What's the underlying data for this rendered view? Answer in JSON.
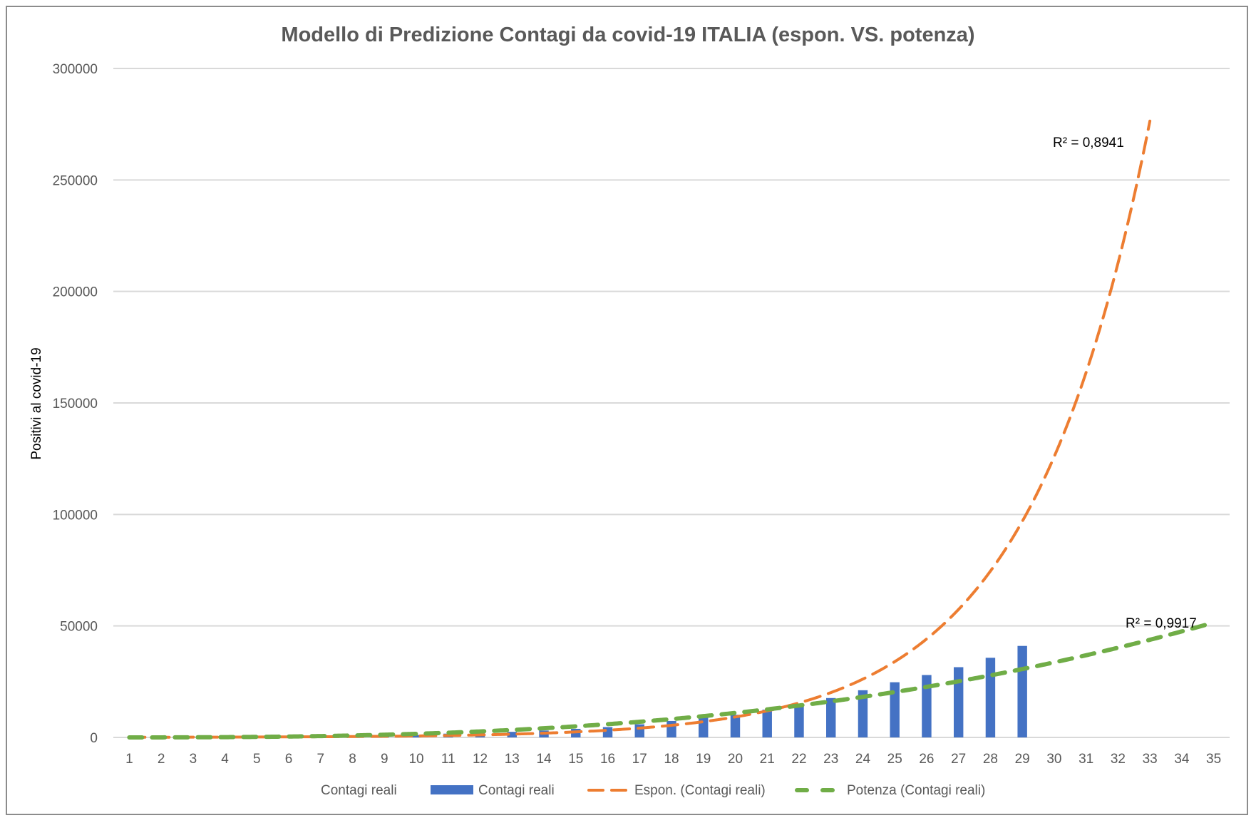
{
  "chart_data": {
    "type": "bar",
    "title": "Modello di Predizione Contagi da covid-19 ITALIA (espon. VS. potenza)",
    "xlabel": "",
    "ylabel": "Positivi al covid-19",
    "ylim": [
      0,
      300000
    ],
    "yticks": [
      0,
      50000,
      100000,
      150000,
      200000,
      250000,
      300000
    ],
    "ytick_labels": [
      "0",
      "50000",
      "100000",
      "150000",
      "200000",
      "250000",
      "300000"
    ],
    "grid": true,
    "categories": [
      "1",
      "2",
      "3",
      "4",
      "5",
      "6",
      "7",
      "8",
      "9",
      "10",
      "11",
      "12",
      "13",
      "14",
      "15",
      "16",
      "17",
      "18",
      "19",
      "20",
      "21",
      "22",
      "23",
      "24",
      "25",
      "26",
      "27",
      "28",
      "29",
      "30",
      "31",
      "32",
      "33",
      "34",
      "35"
    ],
    "series": [
      {
        "name": "Contagi reali",
        "type": "bar",
        "color": "#4472c4",
        "values": [
          3,
          20,
          79,
          150,
          227,
          320,
          445,
          650,
          888,
          1128,
          1694,
          2036,
          2502,
          3089,
          3858,
          4636,
          5883,
          7375,
          9172,
          10149,
          12462,
          15113,
          17660,
          21157,
          24747,
          27980,
          31506,
          35713,
          41035,
          null,
          null,
          null,
          null,
          null,
          null
        ]
      },
      {
        "name": "Espon. (Contagi reali)",
        "type": "trendline-exponential",
        "color": "#ed7d31",
        "x_range": [
          1,
          33
        ],
        "model": {
          "a": 48.6,
          "b": 0.262
        },
        "r_squared_label": "R² = 0,8941"
      },
      {
        "name": "Potenza (Contagi reali)",
        "type": "trendline-power",
        "color": "#70ad47",
        "x_range": [
          1,
          35
        ],
        "model": {
          "c": 2.82,
          "d": 2.76
        },
        "r_squared_label": "R² = 0,9917"
      }
    ],
    "legend": {
      "position": "bottom",
      "entries": [
        {
          "label": "Contagi reali",
          "marker": "none"
        },
        {
          "label": "Contagi reali",
          "marker": "bar",
          "color": "#4472c4"
        },
        {
          "label": "Espon. (Contagi reali)",
          "marker": "dash",
          "color": "#ed7d31"
        },
        {
          "label": "Potenza (Contagi reali)",
          "marker": "dash",
          "color": "#70ad47"
        }
      ]
    }
  }
}
